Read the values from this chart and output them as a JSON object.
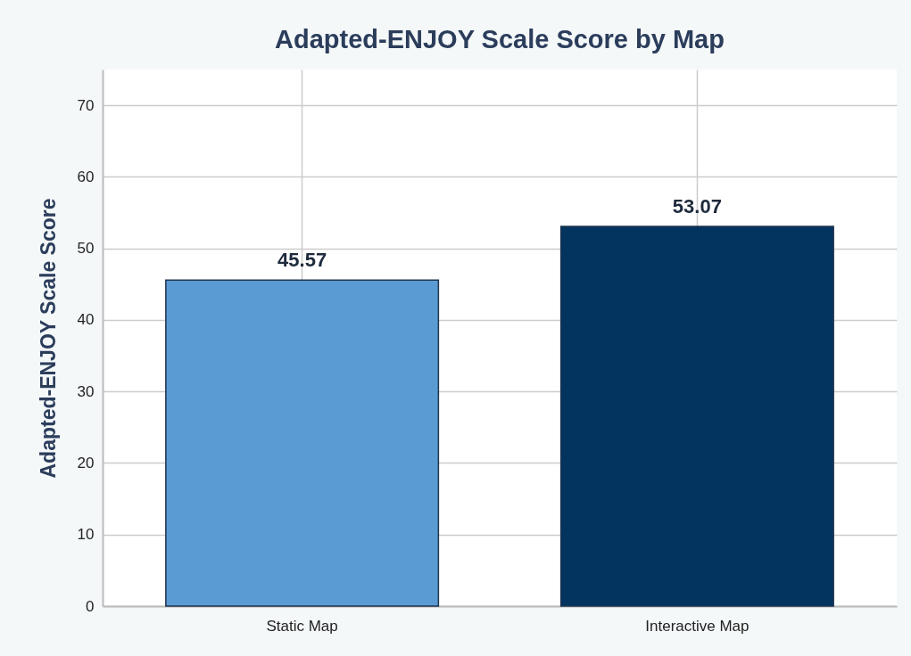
{
  "chart_data": {
    "type": "bar",
    "title": "Adapted-ENJOY Scale Score by Map",
    "ylabel": "Adapted-ENJOY Scale Score",
    "categories": [
      "Static Map",
      "Interactive Map"
    ],
    "values": [
      45.57,
      53.07
    ],
    "colors": [
      "#5b9bd3",
      "#03345f"
    ],
    "ylim": [
      0,
      75
    ],
    "yticks": [
      0,
      10,
      20,
      30,
      40,
      50,
      60,
      70
    ],
    "grid": true,
    "data_labels": true
  }
}
